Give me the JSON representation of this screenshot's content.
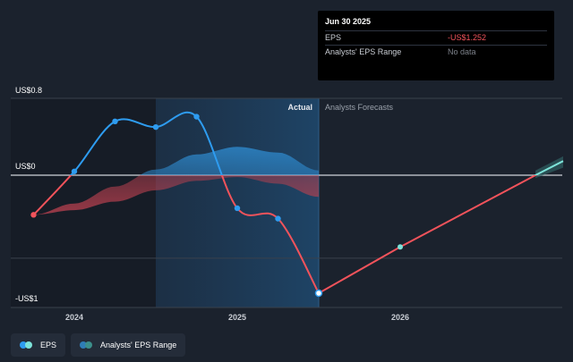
{
  "chart_data": {
    "type": "line",
    "y_axis_labels": [
      "US$0.8",
      "US$0",
      "-US$1"
    ],
    "x_tick_labels": [
      {
        "label": "2024",
        "x": 2024.0
      },
      {
        "label": "2025",
        "x": 2025.0
      },
      {
        "label": "2026",
        "x": 2026.0
      }
    ],
    "section_labels": {
      "actual": "Actual",
      "forecast": "Analysts Forecasts"
    },
    "ylim": [
      -1.4,
      0.8
    ],
    "xlim": [
      2023.65,
      2027.0
    ],
    "actual_end_x": 2025.5,
    "past_shade_start_x": 2024.5,
    "series": [
      {
        "name": "EPS",
        "points": [
          {
            "x": 2023.75,
            "y": -0.42
          },
          {
            "x": 2024.0,
            "y": 0.04
          },
          {
            "x": 2024.25,
            "y": 0.57
          },
          {
            "x": 2024.5,
            "y": 0.51
          },
          {
            "x": 2024.75,
            "y": 0.62
          },
          {
            "x": 2025.0,
            "y": -0.35
          },
          {
            "x": 2025.25,
            "y": -0.46
          },
          {
            "x": 2025.5,
            "y": -1.25
          }
        ]
      },
      {
        "name": "EPS Forecast",
        "points": [
          {
            "x": 2025.5,
            "y": -1.25
          },
          {
            "x": 2026.0,
            "y": -0.76
          },
          {
            "x": 2026.83,
            "y": 0.0
          },
          {
            "x": 2027.0,
            "y": 0.15
          }
        ]
      }
    ],
    "analyst_range_past": {
      "x": [
        2023.75,
        2024.0,
        2024.25,
        2024.5,
        2024.75,
        2025.0,
        2025.25,
        2025.5
      ],
      "high": [
        -0.42,
        -0.3,
        -0.12,
        0.06,
        0.22,
        0.3,
        0.24,
        0.05
      ],
      "low": [
        -0.42,
        -0.37,
        -0.28,
        -0.16,
        -0.06,
        -0.02,
        -0.09,
        -0.23
      ]
    },
    "analyst_range_forecast": {
      "x": [
        2026.83,
        2027.0
      ],
      "high": [
        0.05,
        0.2
      ],
      "low": [
        -0.03,
        0.08
      ]
    }
  },
  "tooltip": {
    "date": "Jun 30 2025",
    "rows": [
      {
        "label": "EPS",
        "value": "-US$1.252"
      },
      {
        "label": "Analysts' EPS Range",
        "value": "No data"
      }
    ]
  },
  "legend": [
    {
      "label": "EPS"
    },
    {
      "label": "Analysts' EPS Range"
    }
  ],
  "colors": {
    "eps_actual": "#2e9cf0",
    "eps_forecast": "#f2535b",
    "range_positive": "#2f7db6",
    "range_negative": "#a33a48",
    "forecast_range": "#7de3d9",
    "zero_line": "#d0d4da",
    "background": "#1b222d"
  }
}
